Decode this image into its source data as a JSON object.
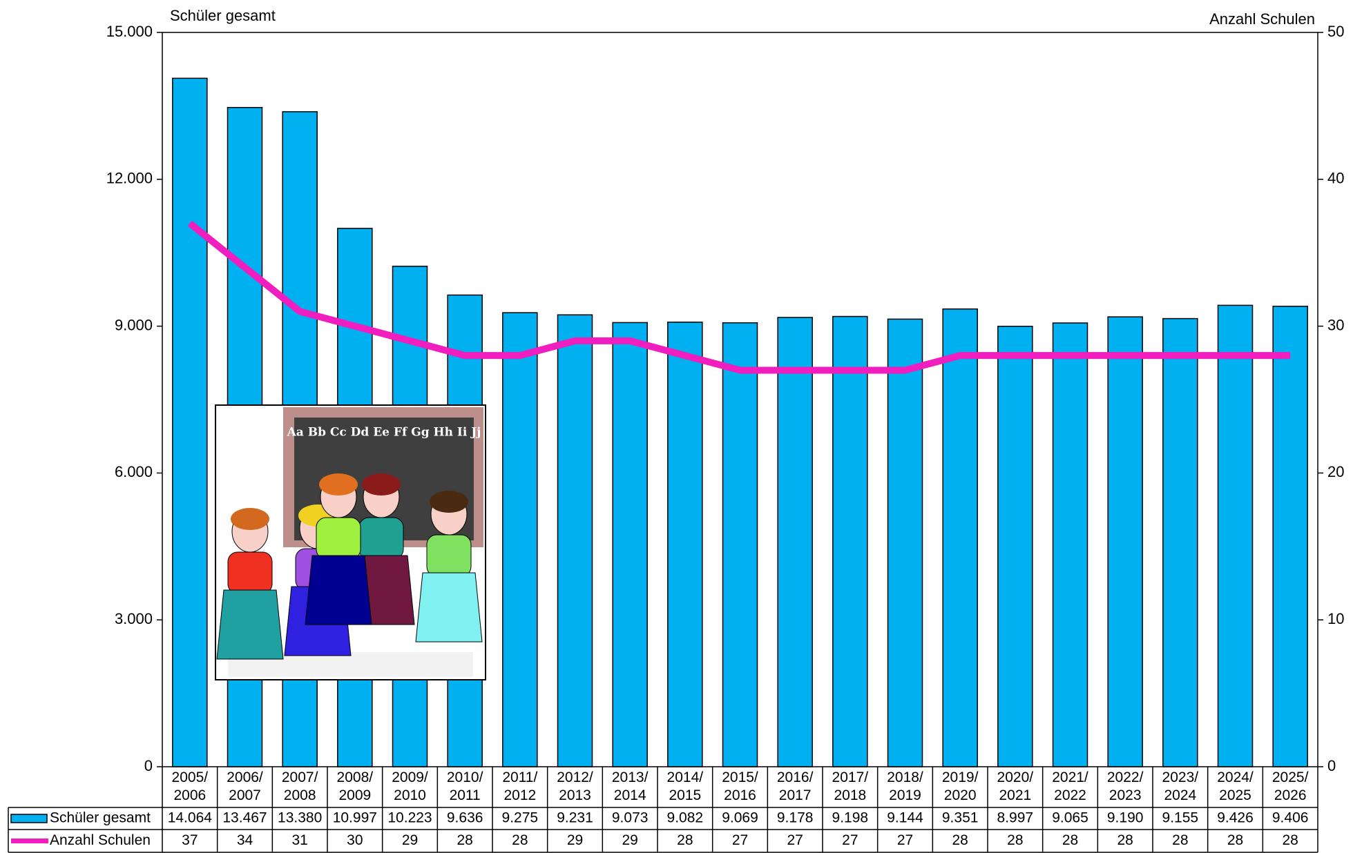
{
  "chart_data": {
    "type": "bar_line",
    "y_axis_title": "Schüler gesamt",
    "y2_axis_title": "Anzahl Schulen",
    "categories": [
      "2005/2006",
      "2006/2007",
      "2007/2008",
      "2008/2009",
      "2009/2010",
      "2010/2011",
      "2011/2012",
      "2012/2013",
      "2013/2014",
      "2014/2015",
      "2015/2016",
      "2016/2017",
      "2017/2018",
      "2018/2019",
      "2019/2020",
      "2020/2021",
      "2021/2022",
      "2022/2023",
      "2023/2024",
      "2024/2025",
      "2025/2026"
    ],
    "series": [
      {
        "name": "Schüler gesamt",
        "type": "bar",
        "color": "#00b0f0",
        "values": [
          14064,
          13467,
          13380,
          10997,
          10223,
          9636,
          9275,
          9231,
          9073,
          9082,
          9069,
          9178,
          9198,
          9144,
          9351,
          8997,
          9065,
          9190,
          9155,
          9426,
          9406
        ],
        "value_labels": [
          "14.064",
          "13.467",
          "13.380",
          "10.997",
          "10.223",
          "9.636",
          "9.275",
          "9.231",
          "9.073",
          "9.082",
          "9.069",
          "9.178",
          "9.198",
          "9.144",
          "9.351",
          "8.997",
          "9.065",
          "9.190",
          "9.155",
          "9.426",
          "9.406"
        ]
      },
      {
        "name": "Anzahl Schulen",
        "type": "line",
        "axis": "y2",
        "color": "#f01ebe",
        "values": [
          37,
          34,
          31,
          30,
          29,
          28,
          28,
          29,
          29,
          28,
          27,
          27,
          27,
          27,
          28,
          28,
          28,
          28,
          28,
          28,
          28
        ]
      }
    ],
    "ylim": [
      0,
      15000
    ],
    "yticks": [
      0,
      {
        "value": 3000,
        "label": "3.000"
      },
      {
        "value": 6000,
        "label": "6.000"
      },
      {
        "value": 9000,
        "label": "9.000"
      },
      {
        "value": 12000,
        "label": "12.000"
      },
      {
        "value": 15000,
        "label": "15.000"
      }
    ],
    "y2lim": [
      0,
      50
    ],
    "y2ticks": [
      0,
      10,
      20,
      30,
      40,
      50
    ],
    "grid": false,
    "data_table": true
  },
  "illustration": {
    "board_text": "Aa Bb Cc Dd Ee Ff Gg Hh Ii Jj"
  }
}
